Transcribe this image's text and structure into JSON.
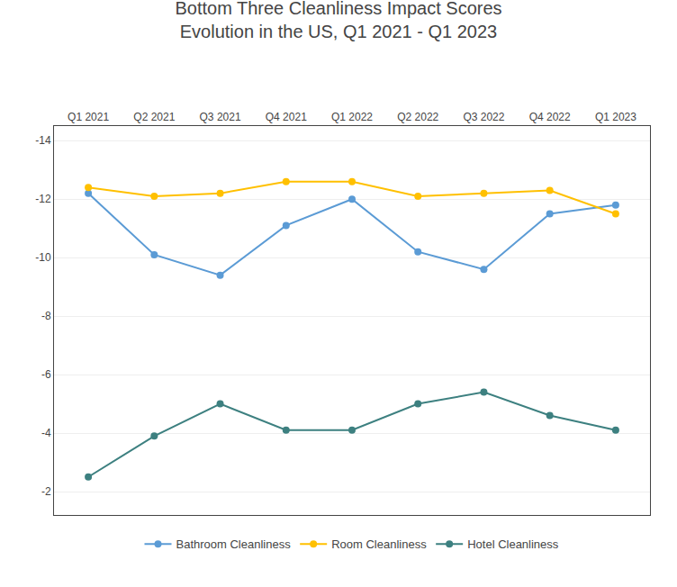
{
  "chart_data": {
    "type": "line",
    "title": "Bottom Three Cleanliness Impact Scores\nEvolution in the US, Q1 2021 - Q1 2023",
    "categories": [
      "Q1 2021",
      "Q2 2021",
      "Q3 2021",
      "Q4 2021",
      "Q1 2022",
      "Q2 2022",
      "Q3 2022",
      "Q4 2022",
      "Q1 2023"
    ],
    "series": [
      {
        "name": "Bathroom Cleanliness",
        "color": "#5B9BD5",
        "values": [
          -12.2,
          -10.1,
          -9.4,
          -11.1,
          -12.0,
          -10.2,
          -9.6,
          -11.5,
          -11.8
        ]
      },
      {
        "name": "Room Cleanliness",
        "color": "#FFC000",
        "values": [
          -12.4,
          -12.1,
          -12.2,
          -12.6,
          -12.6,
          -12.1,
          -12.2,
          -12.3,
          -11.5
        ]
      },
      {
        "name": "Hotel Cleanliness",
        "color": "#3D8080",
        "values": [
          -2.5,
          -3.9,
          -5.0,
          -4.1,
          -4.1,
          -5.0,
          -5.4,
          -4.6,
          -4.1
        ]
      }
    ],
    "ylim": [
      -1.2,
      -14.5
    ],
    "yticks": [
      -14,
      -12,
      -10,
      -8,
      -6,
      -4,
      -2
    ],
    "grid": true,
    "legend": "bottom",
    "marker": "circle",
    "line_style": "solid"
  }
}
